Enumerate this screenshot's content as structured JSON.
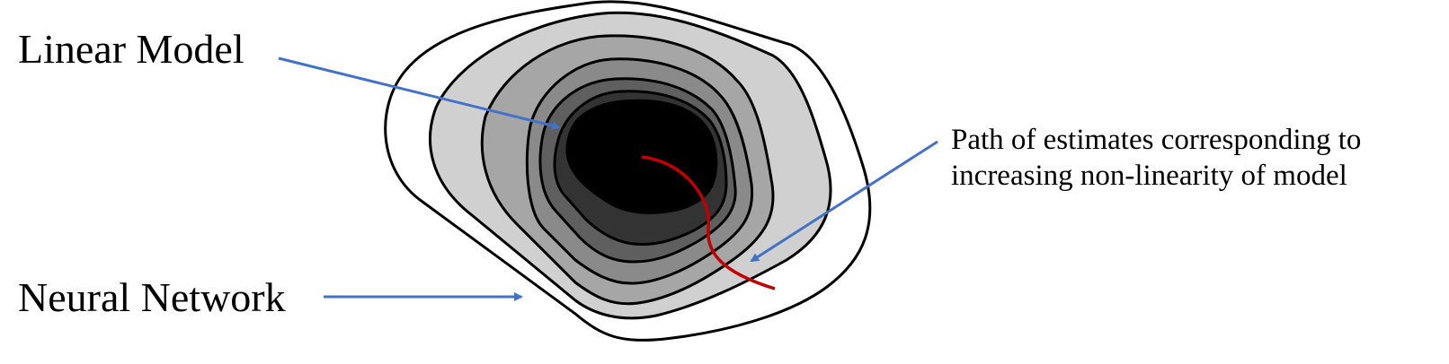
{
  "labels": {
    "linear_model": "Linear Model",
    "neural_network": "Neural Network",
    "path_line1": "Path of estimates corresponding to",
    "path_line2": "increasing non-linearity of model"
  },
  "colors": {
    "arrow": "#4472C4",
    "path": "#C00000",
    "outline": "#000000",
    "contours": [
      "#FFFFFF",
      "#D0D0D0",
      "#A6A6A6",
      "#8A8A8A",
      "#5F5F5F",
      "#333333",
      "#000000"
    ]
  }
}
